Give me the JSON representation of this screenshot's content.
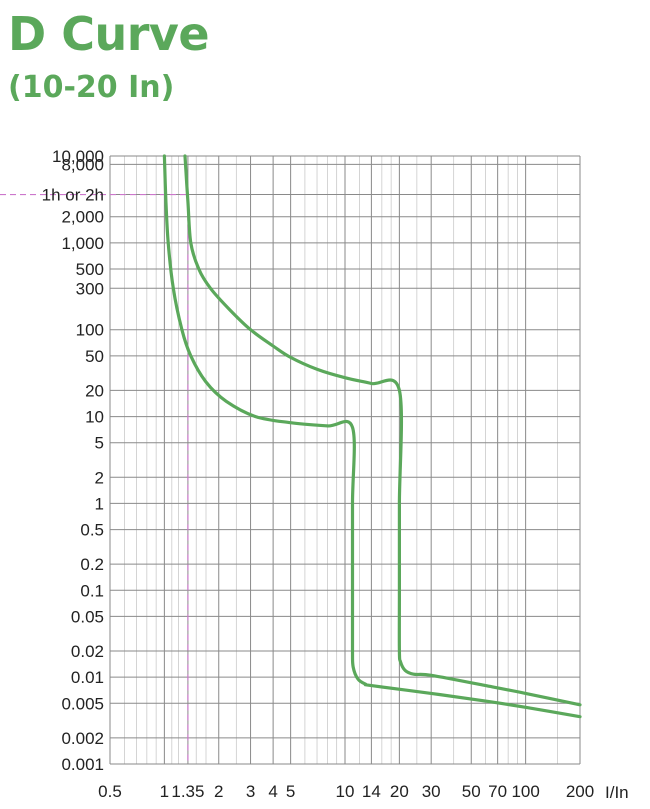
{
  "header": {
    "title": "D Curve",
    "subtitle": "(10-20 In)"
  },
  "colors": {
    "curve": "#5ba85b",
    "grid": "#8a8a8a",
    "reference": "#cc77cc",
    "title": "#5ba85b"
  },
  "chart_data": {
    "type": "line",
    "title": "D Curve",
    "subtitle": "(10-20 In)",
    "xlabel": "I/In",
    "ylabel": "",
    "x_scale": "log",
    "y_scale": "log",
    "xlim": [
      0.5,
      200
    ],
    "ylim": [
      0.001,
      10000
    ],
    "grid": true,
    "x_ticks": [
      {
        "value": 0.5,
        "label": "0.5"
      },
      {
        "value": 1,
        "label": "1"
      },
      {
        "value": 1.35,
        "label": "1.35"
      },
      {
        "value": 2,
        "label": "2"
      },
      {
        "value": 3,
        "label": "3"
      },
      {
        "value": 4,
        "label": "4"
      },
      {
        "value": 5,
        "label": "5"
      },
      {
        "value": 10,
        "label": "10"
      },
      {
        "value": 14,
        "label": "14"
      },
      {
        "value": 20,
        "label": "20"
      },
      {
        "value": 30,
        "label": "30"
      },
      {
        "value": 50,
        "label": "50"
      },
      {
        "value": 70,
        "label": "70"
      },
      {
        "value": 100,
        "label": "100"
      },
      {
        "value": 200,
        "label": "200"
      }
    ],
    "y_ticks": [
      {
        "value": 10000,
        "label": "10,000"
      },
      {
        "value": 8000,
        "label": "8,000"
      },
      {
        "value": 3600,
        "label": "1h or 2h"
      },
      {
        "value": 2000,
        "label": "2,000"
      },
      {
        "value": 1000,
        "label": "1,000"
      },
      {
        "value": 500,
        "label": "500"
      },
      {
        "value": 300,
        "label": "300"
      },
      {
        "value": 100,
        "label": "100"
      },
      {
        "value": 50,
        "label": "50"
      },
      {
        "value": 20,
        "label": "20"
      },
      {
        "value": 10,
        "label": "10"
      },
      {
        "value": 5,
        "label": "5"
      },
      {
        "value": 2,
        "label": "2"
      },
      {
        "value": 1,
        "label": "1"
      },
      {
        "value": 0.5,
        "label": "0.5"
      },
      {
        "value": 0.2,
        "label": "0.2"
      },
      {
        "value": 0.1,
        "label": "0.1"
      },
      {
        "value": 0.05,
        "label": "0.05"
      },
      {
        "value": 0.02,
        "label": "0.02"
      },
      {
        "value": 0.01,
        "label": "0.01"
      },
      {
        "value": 0.005,
        "label": "0.005"
      },
      {
        "value": 0.002,
        "label": "0.002"
      },
      {
        "value": 0.001,
        "label": "0.001"
      }
    ],
    "series": [
      {
        "points": [
          [
            1.0,
            10000
          ],
          [
            1.02,
            3000
          ],
          [
            1.05,
            1000
          ],
          [
            1.12,
            300
          ],
          [
            1.25,
            100
          ],
          [
            1.4,
            50
          ],
          [
            1.7,
            25
          ],
          [
            2.2,
            15
          ],
          [
            3.2,
            10
          ],
          [
            5,
            8.5
          ],
          [
            8,
            7.8
          ],
          [
            11,
            7.5
          ],
          [
            11,
            1
          ],
          [
            11,
            0.1
          ],
          [
            11,
            0.02
          ],
          [
            11.1,
            0.013
          ],
          [
            11.8,
            0.0095
          ],
          [
            13,
            0.0083
          ],
          [
            14,
            0.008
          ],
          [
            30,
            0.0065
          ],
          [
            60,
            0.0053
          ],
          [
            100,
            0.0045
          ],
          [
            200,
            0.0035
          ]
        ]
      },
      {
        "points": [
          [
            1.3,
            10000
          ],
          [
            1.35,
            3000
          ],
          [
            1.4,
            1000
          ],
          [
            1.55,
            500
          ],
          [
            1.8,
            300
          ],
          [
            2.3,
            170
          ],
          [
            3,
            100
          ],
          [
            4,
            65
          ],
          [
            5,
            48
          ],
          [
            7,
            35
          ],
          [
            10,
            28
          ],
          [
            14,
            24
          ],
          [
            20,
            20
          ],
          [
            20,
            1
          ],
          [
            20,
            0.1
          ],
          [
            20,
            0.02
          ],
          [
            20.3,
            0.015
          ],
          [
            21.5,
            0.012
          ],
          [
            24,
            0.0108
          ],
          [
            30,
            0.0105
          ],
          [
            60,
            0.008
          ],
          [
            100,
            0.0065
          ],
          [
            200,
            0.0048
          ]
        ]
      }
    ],
    "reference": {
      "x": 1.35,
      "y": 3600
    }
  }
}
